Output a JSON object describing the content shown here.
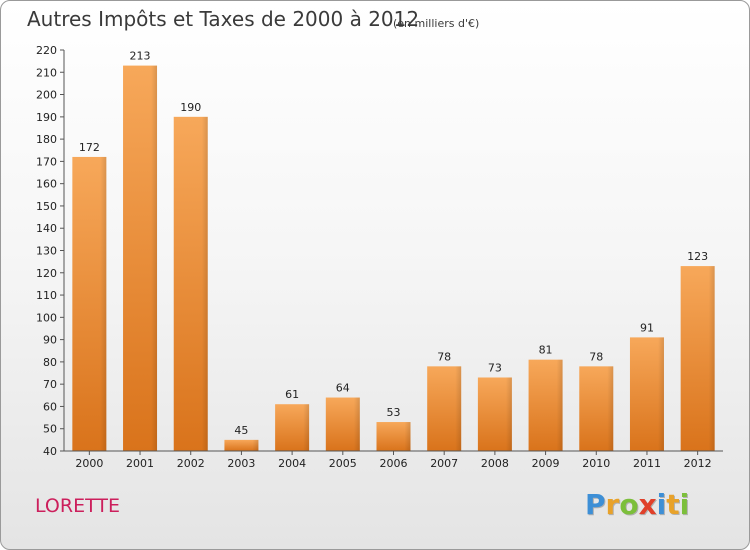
{
  "header": {
    "title": "Autres Impôts et Taxes de 2000 à 2012",
    "subtitle": "(en milliers d'€)"
  },
  "footer": {
    "commune": "LORETTE",
    "logo_letters": [
      "P",
      "r",
      "o",
      "x",
      "i",
      "t",
      "i"
    ],
    "logo_colors": [
      "#3d8fd6",
      "#e8a22a",
      "#7cbf3b",
      "#e0402a",
      "#3d8fd6",
      "#e8a22a",
      "#7cbf3b"
    ]
  },
  "chart_data": {
    "type": "bar",
    "categories": [
      "2000",
      "2001",
      "2002",
      "2003",
      "2004",
      "2005",
      "2006",
      "2007",
      "2008",
      "2009",
      "2010",
      "2011",
      "2012"
    ],
    "values": [
      172,
      213,
      190,
      45,
      61,
      64,
      53,
      78,
      73,
      81,
      78,
      91,
      123
    ],
    "ylim": [
      40,
      220
    ],
    "ytick_step": 10,
    "grid": false,
    "colors": {
      "bar_light": "#f7a85a",
      "bar_dark": "#d9731b",
      "axis": "#555555"
    }
  }
}
